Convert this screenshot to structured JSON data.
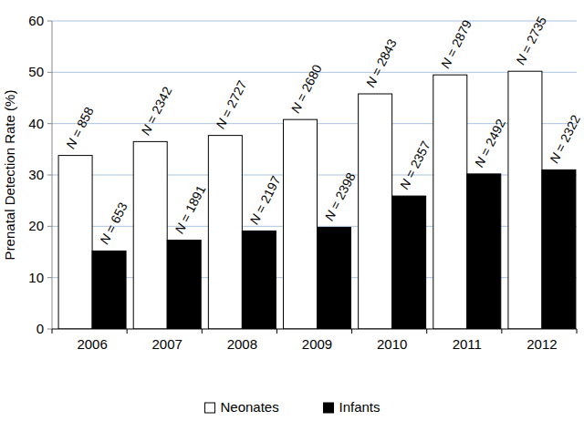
{
  "chart_data": {
    "type": "bar",
    "y_label": "Prenatal Detection Rate (%)",
    "categories": [
      "2006",
      "2007",
      "2008",
      "2009",
      "2010",
      "2011",
      "2012"
    ],
    "series": [
      {
        "name": "Neonates",
        "color": "#ffffff",
        "values": [
          33.8,
          36.5,
          37.7,
          40.8,
          45.8,
          49.5,
          50.2
        ],
        "annotations": [
          "N = 858",
          "N = 2342",
          "N = 2727",
          "N = 2680",
          "N = 2843",
          "N = 2879",
          "N = 2735"
        ]
      },
      {
        "name": "Infants",
        "color": "#000000",
        "values": [
          15.2,
          17.3,
          19.1,
          19.8,
          25.9,
          30.2,
          31.0
        ],
        "annotations": [
          "N = 653",
          "N = 1891",
          "N = 2197",
          "N = 2398",
          "N = 2357",
          "N = 2492",
          "N = 2322"
        ]
      }
    ],
    "ylim": [
      0,
      60
    ],
    "yticks": [
      0,
      10,
      20,
      30,
      40,
      50,
      60
    ],
    "grid": true,
    "legend": "bottom"
  }
}
